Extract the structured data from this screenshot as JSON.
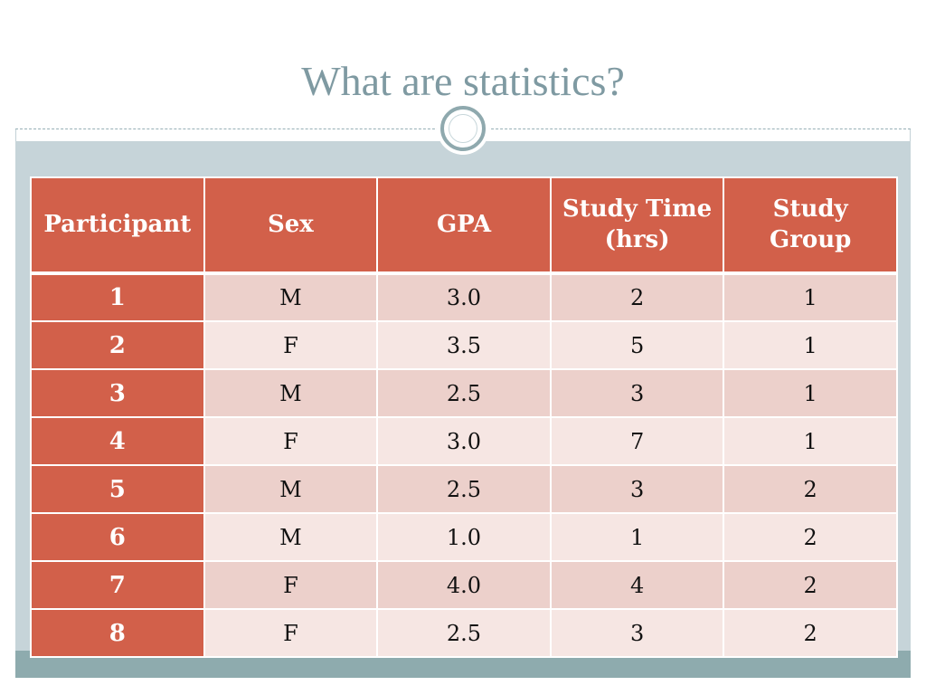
{
  "slide": {
    "title": "What are statistics?"
  },
  "table": {
    "headers": [
      "Participant",
      "Sex",
      "GPA",
      "Study Time\n(hrs)",
      "Study\nGroup"
    ],
    "rows": [
      [
        "1",
        "M",
        "3.0",
        "2",
        "1"
      ],
      [
        "2",
        "F",
        "3.5",
        "5",
        "1"
      ],
      [
        "3",
        "M",
        "2.5",
        "3",
        "1"
      ],
      [
        "4",
        "F",
        "3.0",
        "7",
        "1"
      ],
      [
        "5",
        "M",
        "2.5",
        "3",
        "2"
      ],
      [
        "6",
        "M",
        "1.0",
        "1",
        "2"
      ],
      [
        "7",
        "F",
        "4.0",
        "4",
        "2"
      ],
      [
        "8",
        "F",
        "2.5",
        "3",
        "2"
      ]
    ]
  },
  "colors": {
    "header": "#d2604a",
    "row_dark": "#ecd0cb",
    "row_light": "#f6e6e3",
    "title": "#7f9aa2",
    "accent": "#8eabae"
  },
  "icons": {
    "divider": "circle-medallion-icon"
  }
}
